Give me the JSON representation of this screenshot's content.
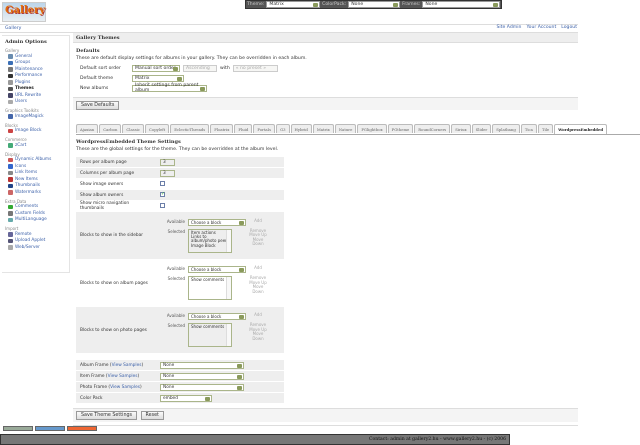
{
  "topbar": {
    "theme_label": "Theme:",
    "theme_value": "Matrix",
    "colorpack_label": "ColorPack:",
    "colorpack_value": "None",
    "frames_label": "Frames:",
    "frames_value": "None"
  },
  "logo_text": "Gallery",
  "breadcrumb": "Gallery",
  "toplinks": [
    "Site Admin",
    "Your Account",
    "Logout"
  ],
  "sidebar": {
    "title": "Admin Options",
    "groups": [
      {
        "name": "Gallery",
        "items": [
          {
            "label": "General",
            "color": "#6a8caf"
          },
          {
            "label": "Groups",
            "color": "#3b6fb6"
          },
          {
            "label": "Maintenance",
            "color": "#777"
          },
          {
            "label": "Performance",
            "color": "#333"
          },
          {
            "label": "Plugins",
            "color": "#999"
          },
          {
            "label": "Themes",
            "color": "#555",
            "active": true
          },
          {
            "label": "URL Rewrite",
            "color": "#446"
          },
          {
            "label": "Users",
            "color": "#aaa"
          }
        ]
      },
      {
        "name": "Graphics Toolkits",
        "items": [
          {
            "label": "ImageMagick",
            "color": "#46a"
          }
        ]
      },
      {
        "name": "Blocks",
        "items": [
          {
            "label": "Image Block",
            "color": "#c44"
          }
        ]
      },
      {
        "name": "Commerce",
        "items": [
          {
            "label": "zCart",
            "color": "#4a7"
          }
        ]
      },
      {
        "name": "Display",
        "items": [
          {
            "label": "Dynamic Albums",
            "color": "#c55"
          },
          {
            "label": "Icons",
            "color": "#36c"
          },
          {
            "label": "Link Items",
            "color": "#888"
          },
          {
            "label": "New Items",
            "color": "#b33"
          },
          {
            "label": "Thumbnails",
            "color": "#248"
          },
          {
            "label": "Watermarks",
            "color": "#c66"
          }
        ]
      },
      {
        "name": "Extra Data",
        "items": [
          {
            "label": "Comments",
            "color": "#3a3"
          },
          {
            "label": "Custom Fields",
            "color": "#777"
          },
          {
            "label": "MultiLanguage",
            "color": "#6aa"
          }
        ]
      },
      {
        "name": "Import",
        "items": [
          {
            "label": "Remote",
            "color": "#669"
          },
          {
            "label": "Upload Applet",
            "color": "#557"
          },
          {
            "label": "Web/Server",
            "color": "#aaa"
          }
        ]
      }
    ]
  },
  "main": {
    "title": "Gallery Themes",
    "defaults_heading": "Defaults",
    "defaults_desc": "These are default display settings for albums in your gallery. They can be overridden in each album.",
    "sort_label": "Default sort order",
    "sort_value": "Manual sort order",
    "sort_dir": "Ascending",
    "with_label": "with",
    "with_value": "« no preset »",
    "theme_label": "Default theme",
    "theme_value": "Matrix",
    "new_albums_label": "New albums",
    "new_albums_value": "Inherit settings from parent album",
    "save_defaults": "Save Defaults"
  },
  "tabs": [
    "Ajaxian",
    "Carbon",
    "Classic",
    "Copyleft",
    "EclecticThreads",
    "Floatrix",
    "Fluid",
    "PortaIs",
    "G3",
    "Hybrid",
    "Matrix",
    "Nature",
    "PGlightbox",
    "PGtheme",
    "RoundCorners",
    "Siriux",
    "Slider",
    "Splatbang",
    "Tica",
    "Tile",
    "WordpressEmbedded"
  ],
  "active_tab": "WordpressEmbedded",
  "theme": {
    "heading": "WordpressEmbedded Theme Settings",
    "desc": "These are the global settings for the theme. They can be overridden at the album level.",
    "rows_label": "Rows per album page",
    "rows_value": "3",
    "cols_label": "Columns per album page",
    "cols_value": "3",
    "show_owners_label": "Show image owners",
    "show_owners": false,
    "show_album_owners_label": "Show album owners",
    "show_album_owners": true,
    "micro_label": "Show micro navigation thumbnails",
    "micro": false,
    "available_label": "Available",
    "selected_label": "Selected",
    "choose": "Choose a block",
    "add": "Add",
    "remove": "Remove",
    "move_up": "Move Up",
    "move_down": "Move Down",
    "sidebar_blocks_label": "Blocks to show in the sidebar",
    "sidebar_blocks": [
      "Item actions",
      "Links to album/photo peers",
      "Image Block"
    ],
    "album_blocks_label": "Blocks to show on album pages",
    "album_blocks": [
      "Show comments"
    ],
    "photo_blocks_label": "Blocks to show on photo pages",
    "photo_blocks": [
      "Show comments"
    ],
    "album_frame_label": "Album Frame",
    "item_frame_label": "Item Frame",
    "photo_frame_label": "Photo Frame",
    "view_samples": "View Samples",
    "album_frame": "None",
    "item_frame": "None",
    "photo_frame": "None",
    "colorpack_label": "Color Pack",
    "colorpack": "embed",
    "save": "Save Theme Settings",
    "reset": "Reset"
  },
  "footer": "Contact: admin at gallery2.hu - www.gallery2.hu - (c) 2006"
}
